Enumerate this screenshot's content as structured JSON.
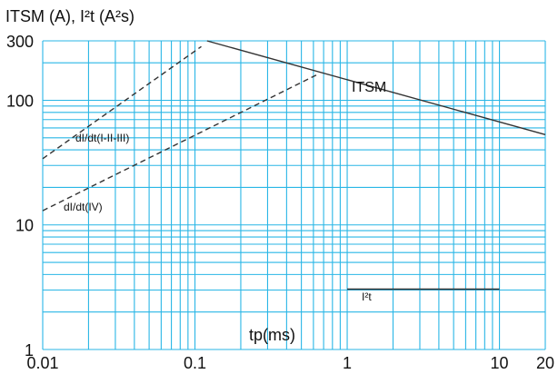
{
  "chart_data": {
    "type": "line",
    "title": "ITSM (A), I²t (A²s)",
    "xlabel": "tp(ms)",
    "ylabel": "",
    "x_scale": "log",
    "y_scale": "log",
    "xlim": [
      0.01,
      20
    ],
    "ylim": [
      1,
      300
    ],
    "grid": true,
    "x_tick_labels": [
      {
        "value": 0.01,
        "label": "0.01"
      },
      {
        "value": 0.1,
        "label": "0.1"
      },
      {
        "value": 1,
        "label": "1"
      },
      {
        "value": 10,
        "label": "10"
      },
      {
        "value": 20,
        "label": "20"
      }
    ],
    "y_tick_labels": [
      {
        "value": 1,
        "label": "1"
      },
      {
        "value": 10,
        "label": "10"
      },
      {
        "value": 100,
        "label": "100"
      },
      {
        "value": 300,
        "label": "300"
      }
    ],
    "series": [
      {
        "name": "ITSM",
        "style": "solid",
        "color": "#333333",
        "x": [
          0.12,
          20
        ],
        "y": [
          300,
          53
        ]
      },
      {
        "name": "dI/dt(I-II-III)",
        "style": "dashed",
        "color": "#333333",
        "x": [
          0.01,
          0.11
        ],
        "y": [
          34,
          270
        ]
      },
      {
        "name": "dI/dt(IV)",
        "style": "dashed",
        "color": "#333333",
        "x": [
          0.01,
          0.63
        ],
        "y": [
          13,
          160
        ]
      },
      {
        "name": "I²t",
        "style": "solid",
        "color": "#333333",
        "x": [
          1,
          10
        ],
        "y": [
          3.05,
          3.05
        ]
      }
    ],
    "annotations": {
      "itsm": "ITSM",
      "didt_123": "dI/dt(I-II-III)",
      "didt_4": "dI/dt(IV)",
      "i2t": "I²t"
    },
    "colors": {
      "grid": "#29b6e6",
      "line": "#333333"
    }
  }
}
